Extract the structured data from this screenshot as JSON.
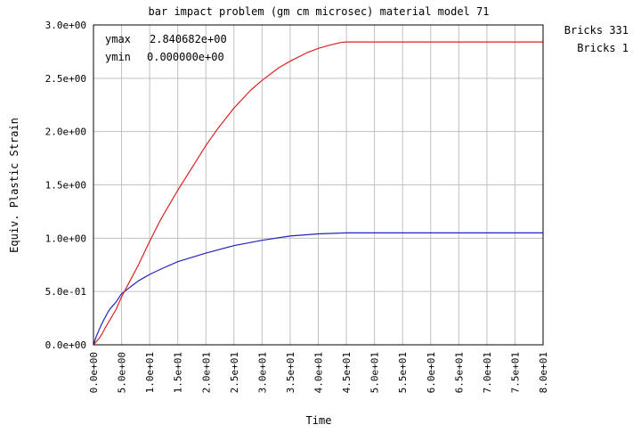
{
  "chart_data": {
    "type": "line",
    "title": "bar impact problem (gm cm microsec) material model 71",
    "xlabel": "Time",
    "ylabel": "Equiv. Plastic Strain",
    "xlim": [
      0,
      80
    ],
    "ylim": [
      0,
      3
    ],
    "grid": true,
    "x_ticks": [
      0,
      5,
      10,
      15,
      20,
      25,
      30,
      35,
      40,
      45,
      50,
      55,
      60,
      65,
      70,
      75,
      80
    ],
    "x_tick_labels": [
      "0.0e+00",
      "5.0e+00",
      "1.0e+01",
      "1.5e+01",
      "2.0e+01",
      "2.5e+01",
      "3.0e+01",
      "3.5e+01",
      "4.0e+01",
      "4.5e+01",
      "5.0e+01",
      "5.5e+01",
      "6.0e+01",
      "6.5e+01",
      "7.0e+01",
      "7.5e+01",
      "8.0e+01"
    ],
    "y_ticks": [
      0,
      0.5,
      1.0,
      1.5,
      2.0,
      2.5,
      3.0
    ],
    "y_tick_labels": [
      "0.0e+00",
      "5.0e-01",
      "1.0e+00",
      "1.5e+00",
      "2.0e+00",
      "2.5e+00",
      "3.0e+00"
    ],
    "stats": [
      {
        "label": "ymax",
        "value": "2.840682e+00"
      },
      {
        "label": "ymin",
        "value": "0.000000e+00"
      }
    ],
    "legend_position": "top-right-outside",
    "series": [
      {
        "name": "Bricks 331",
        "color": "#2222bb",
        "x": [
          0,
          0.5,
          1,
          1.5,
          2,
          2.5,
          3,
          4,
          5,
          6,
          7,
          8,
          10,
          12,
          15,
          20,
          25,
          30,
          35,
          40,
          45,
          50,
          55,
          60,
          65,
          70,
          75,
          80
        ],
        "y": [
          0,
          0.08,
          0.14,
          0.2,
          0.25,
          0.3,
          0.34,
          0.4,
          0.48,
          0.52,
          0.56,
          0.6,
          0.66,
          0.71,
          0.78,
          0.86,
          0.93,
          0.98,
          1.02,
          1.04,
          1.05,
          1.05,
          1.05,
          1.05,
          1.05,
          1.05,
          1.05,
          1.05
        ]
      },
      {
        "name": "Bricks 1",
        "color": "#dd2222",
        "x": [
          0,
          0.5,
          1,
          1.5,
          2,
          3,
          4,
          5,
          6,
          8,
          10,
          12,
          15,
          18,
          20,
          22,
          25,
          28,
          30,
          33,
          35,
          38,
          40,
          42,
          44,
          45,
          46,
          50,
          55,
          60,
          65,
          70,
          75,
          80
        ],
        "y": [
          0,
          0.03,
          0.06,
          0.1,
          0.15,
          0.24,
          0.33,
          0.45,
          0.55,
          0.75,
          0.97,
          1.18,
          1.45,
          1.7,
          1.87,
          2.02,
          2.22,
          2.39,
          2.48,
          2.6,
          2.66,
          2.74,
          2.78,
          2.81,
          2.835,
          2.84,
          2.84,
          2.84,
          2.84,
          2.84,
          2.84,
          2.84,
          2.84,
          2.84
        ]
      }
    ]
  }
}
